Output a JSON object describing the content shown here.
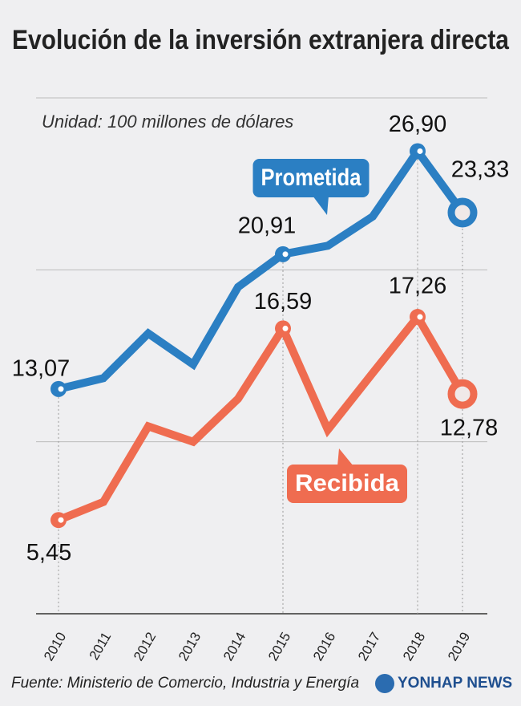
{
  "chart_data": {
    "type": "line",
    "title": "Evolución de la inversión extranjera directa",
    "subtitle": "Unidad: 100 millones de dólares",
    "source": "Fuente: Ministerio de Comercio, Industria y Energía",
    "logo": "YONHAP NEWS",
    "categories": [
      "2010",
      "2011",
      "2012",
      "2013",
      "2014",
      "2015",
      "2016",
      "2017",
      "2018",
      "2019"
    ],
    "series": [
      {
        "name": "Prometida",
        "color": "#2b7fc3",
        "values": [
          13.07,
          13.7,
          16.3,
          14.5,
          19.0,
          20.91,
          21.4,
          23.1,
          26.9,
          23.33
        ],
        "value_labels": [
          "13,07",
          null,
          null,
          null,
          null,
          "20,91",
          null,
          null,
          "26,90",
          "23,33"
        ]
      },
      {
        "name": "Recibida",
        "color": "#ef6c50",
        "values": [
          5.45,
          6.5,
          10.9,
          10.0,
          12.5,
          16.59,
          10.7,
          14.0,
          17.26,
          12.78
        ],
        "value_labels": [
          "5,45",
          null,
          null,
          null,
          null,
          "16,59",
          null,
          null,
          "17,26",
          "12,78"
        ]
      }
    ],
    "ylim": [
      0,
      30
    ],
    "yticks": [
      0,
      10,
      20,
      30
    ],
    "grid": true
  }
}
